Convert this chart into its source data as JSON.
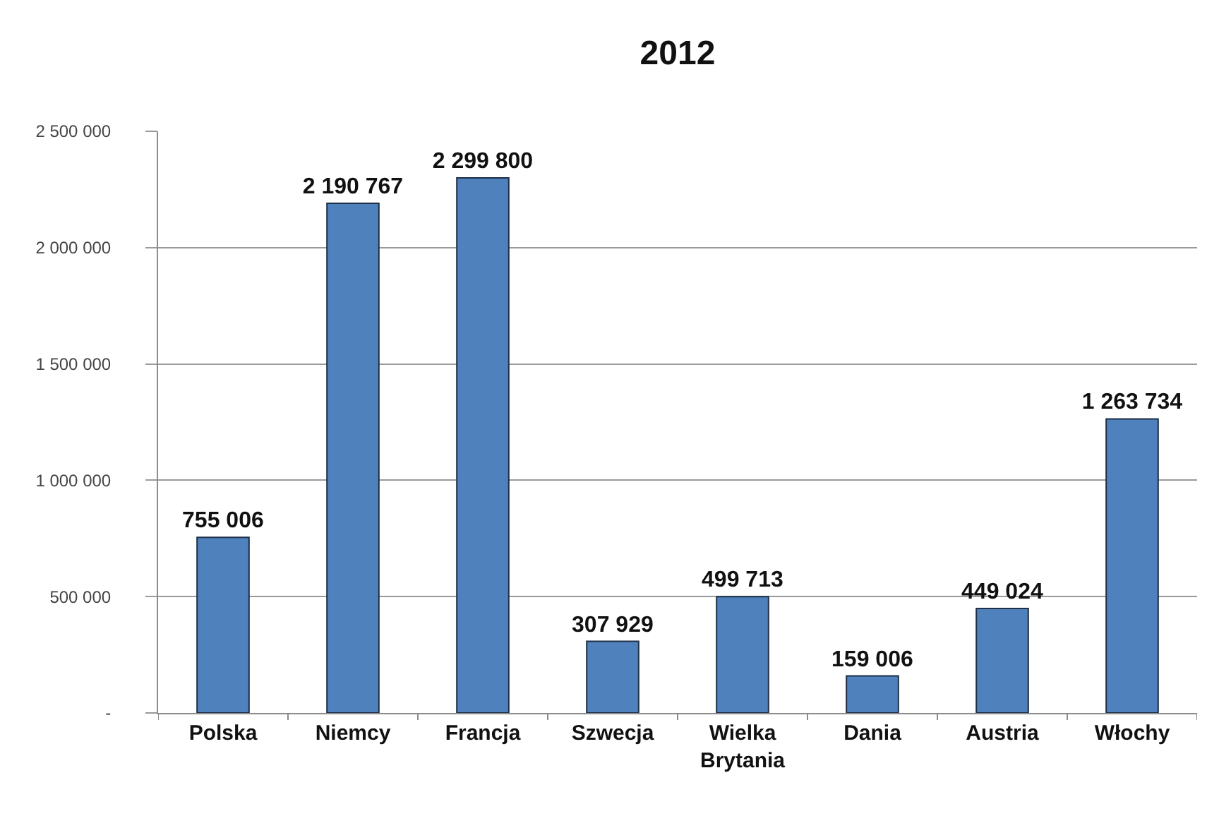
{
  "chart_data": {
    "type": "bar",
    "title": "2012",
    "categories": [
      "Polska",
      "Niemcy",
      "Francja",
      "Szwecja",
      "Wielka Brytania",
      "Dania",
      "Austria",
      "Włochy"
    ],
    "values": [
      755006,
      2190767,
      2299800,
      307929,
      499713,
      159006,
      449024,
      1263734
    ],
    "color": "#4f81bd",
    "data_labels": true,
    "ylim": [
      0,
      2500000
    ],
    "yticks": [
      {
        "value": 0,
        "label": "-"
      },
      {
        "value": 500000,
        "label": "500 000"
      },
      {
        "value": 1000000,
        "label": "1 000 000"
      },
      {
        "value": 1500000,
        "label": "1 500 000"
      },
      {
        "value": 2000000,
        "label": "2 000 000"
      },
      {
        "value": 2500000,
        "label": "2 500 000"
      }
    ],
    "grid": "y"
  }
}
